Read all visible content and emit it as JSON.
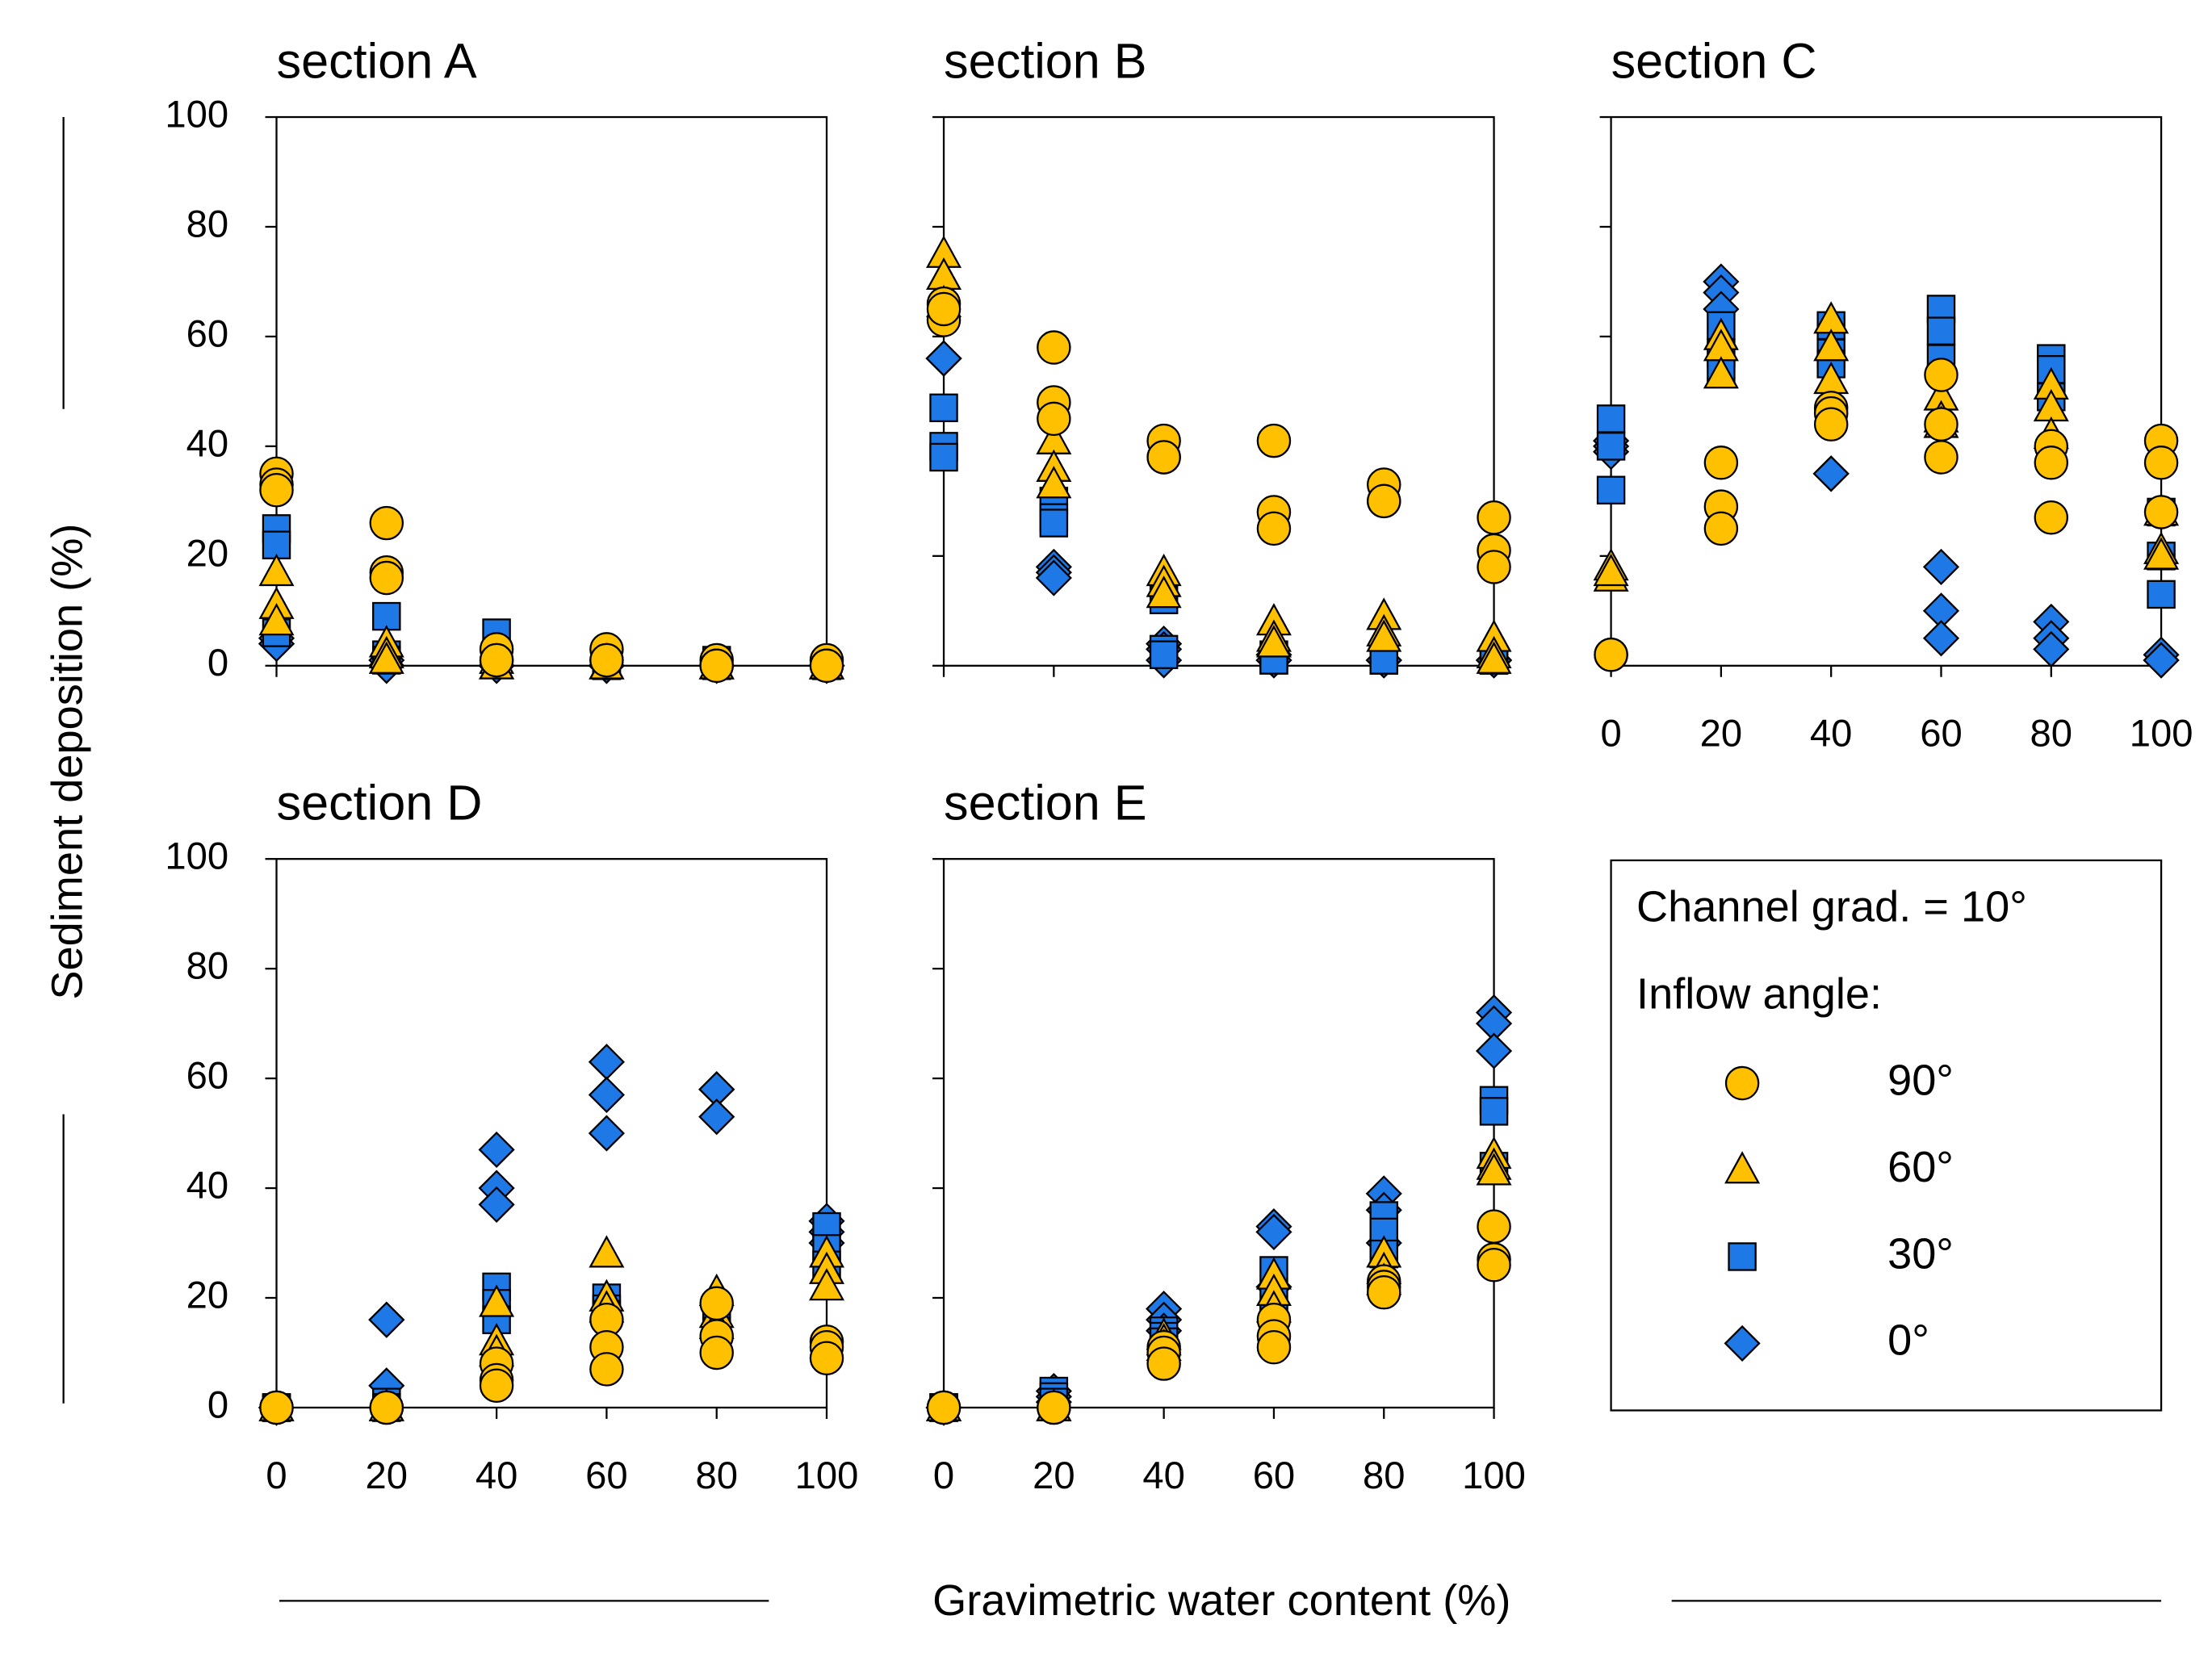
{
  "figure": {
    "ylabel": "Sediment deposition (%)",
    "xlabel": "Gravimetric water content (%)",
    "legend_title": "Channel grad. = 10°",
    "legend_subtitle": "Inflow angle:"
  },
  "chart_data": [
    {
      "type": "scatter",
      "title": "section A",
      "xtick_labels": false,
      "ytick_labels": true,
      "x": [
        0,
        0,
        0,
        20,
        20,
        20,
        40,
        40,
        40,
        60,
        60,
        60,
        80,
        80,
        80,
        100,
        100,
        100
      ],
      "xlim": [
        0,
        100
      ],
      "ylim": [
        0,
        100
      ],
      "xticks": [
        0,
        20,
        40,
        60,
        80,
        100
      ],
      "yticks": [
        0,
        20,
        40,
        60,
        80,
        100
      ],
      "series": [
        {
          "name": "90°",
          "color": "#FFC000",
          "marker": "circle",
          "values": [
            35,
            33,
            32,
            26,
            17,
            16,
            3,
            1,
            1,
            3,
            1,
            1,
            1,
            0,
            0,
            1,
            0,
            0
          ]
        },
        {
          "name": "60°",
          "color": "#FFC000",
          "marker": "triangle",
          "values": [
            17,
            11,
            8,
            4,
            2,
            1,
            1,
            0,
            0,
            0,
            0,
            0,
            0,
            0,
            0,
            0,
            0,
            0
          ]
        },
        {
          "name": "30°",
          "color": "#1E78E6",
          "marker": "square",
          "values": [
            25,
            22,
            6,
            9,
            2,
            1,
            6,
            2,
            1,
            1,
            0,
            0,
            1,
            0,
            0,
            0,
            0,
            0
          ]
        },
        {
          "name": "0°",
          "color": "#1E78E6",
          "marker": "diamond",
          "values": [
            5,
            4,
            4,
            1,
            0,
            0,
            0,
            0,
            0,
            0,
            0,
            0,
            0,
            0,
            0,
            0,
            0,
            0
          ]
        }
      ]
    },
    {
      "type": "scatter",
      "title": "section B",
      "xtick_labels": false,
      "ytick_labels": false,
      "x": [
        0,
        0,
        0,
        20,
        20,
        20,
        40,
        40,
        40,
        60,
        60,
        60,
        80,
        80,
        80,
        100,
        100,
        100
      ],
      "xlim": [
        0,
        100
      ],
      "ylim": [
        0,
        100
      ],
      "xticks": [
        0,
        20,
        40,
        60,
        80,
        100
      ],
      "yticks": [
        0,
        20,
        40,
        60,
        80,
        100
      ],
      "series": [
        {
          "name": "90°",
          "color": "#FFC000",
          "marker": "circle",
          "values": [
            66,
            63,
            65,
            58,
            48,
            45,
            41,
            38,
            38,
            41,
            28,
            25,
            33,
            30,
            30,
            27,
            21,
            18
          ]
        },
        {
          "name": "60°",
          "color": "#FFC000",
          "marker": "triangle",
          "values": [
            75,
            71,
            66,
            41,
            36,
            33,
            17,
            15,
            13,
            8,
            5,
            4,
            9,
            6,
            5,
            5,
            2,
            1
          ]
        },
        {
          "name": "30°",
          "color": "#1E78E6",
          "marker": "square",
          "values": [
            47,
            40,
            38,
            30,
            27,
            26,
            12,
            3,
            2,
            2,
            1,
            1,
            1,
            1,
            1,
            1,
            1,
            1
          ]
        },
        {
          "name": "0°",
          "color": "#1E78E6",
          "marker": "diamond",
          "values": [
            56,
            56,
            56,
            18,
            17,
            16,
            4,
            3,
            1,
            2,
            1,
            1,
            1,
            1,
            1,
            1,
            1,
            1
          ]
        }
      ]
    },
    {
      "type": "scatter",
      "title": "section C",
      "xtick_labels": true,
      "ytick_labels": false,
      "x": [
        0,
        0,
        0,
        20,
        20,
        20,
        40,
        40,
        40,
        60,
        60,
        60,
        80,
        80,
        80,
        100,
        100,
        100
      ],
      "xlim": [
        0,
        100
      ],
      "ylim": [
        0,
        100
      ],
      "xticks": [
        0,
        20,
        40,
        60,
        80,
        100
      ],
      "yticks": [
        0,
        20,
        40,
        60,
        80,
        100
      ],
      "series": [
        {
          "name": "90°",
          "color": "#FFC000",
          "marker": "circle",
          "values": [
            2,
            2,
            2,
            37,
            29,
            25,
            47,
            46,
            44,
            53,
            44,
            38,
            40,
            37,
            27,
            41,
            37,
            28
          ]
        },
        {
          "name": "60°",
          "color": "#FFC000",
          "marker": "triangle",
          "values": [
            18,
            16,
            17,
            60,
            58,
            53,
            63,
            58,
            52,
            49,
            45,
            44,
            51,
            47,
            42,
            28,
            21,
            20
          ]
        },
        {
          "name": "30°",
          "color": "#1E78E6",
          "marker": "square",
          "values": [
            45,
            40,
            32,
            62,
            57,
            54,
            62,
            57,
            55,
            65,
            61,
            56,
            56,
            54,
            49,
            28,
            20,
            13
          ]
        },
        {
          "name": "0°",
          "color": "#1E78E6",
          "marker": "diamond",
          "values": [
            41,
            40,
            39,
            70,
            68,
            65,
            35,
            35,
            35,
            18,
            10,
            5,
            8,
            5,
            3,
            2,
            1,
            1
          ]
        }
      ]
    },
    {
      "type": "scatter",
      "title": "section D",
      "xtick_labels": true,
      "ytick_labels": true,
      "x": [
        0,
        0,
        0,
        20,
        20,
        20,
        40,
        40,
        40,
        60,
        60,
        60,
        80,
        80,
        80,
        100,
        100,
        100
      ],
      "xlim": [
        0,
        100
      ],
      "ylim": [
        0,
        100
      ],
      "xticks": [
        0,
        20,
        40,
        60,
        80,
        100
      ],
      "yticks": [
        0,
        20,
        40,
        60,
        80,
        100
      ],
      "series": [
        {
          "name": "90°",
          "color": "#FFC000",
          "marker": "circle",
          "values": [
            0,
            0,
            0,
            0,
            0,
            0,
            8,
            5,
            4,
            16,
            11,
            7,
            19,
            13,
            10,
            12,
            11,
            9
          ]
        },
        {
          "name": "60°",
          "color": "#FFC000",
          "marker": "triangle",
          "values": [
            0,
            0,
            0,
            0,
            0,
            0,
            19,
            12,
            10,
            28,
            20,
            18,
            21,
            17,
            15,
            28,
            25,
            22
          ]
        },
        {
          "name": "30°",
          "color": "#1E78E6",
          "marker": "square",
          "values": [
            0,
            0,
            0,
            1,
            0,
            0,
            22,
            19,
            16,
            20,
            18,
            17,
            16,
            15,
            14,
            33,
            29,
            26
          ]
        },
        {
          "name": "0°",
          "color": "#1E78E6",
          "marker": "diamond",
          "values": [
            0,
            0,
            0,
            16,
            16,
            4,
            47,
            40,
            37,
            63,
            57,
            50,
            58,
            58,
            53,
            34,
            32,
            30
          ]
        }
      ]
    },
    {
      "type": "scatter",
      "title": "section E",
      "xtick_labels": true,
      "ytick_labels": false,
      "x": [
        0,
        0,
        0,
        20,
        20,
        20,
        40,
        40,
        40,
        60,
        60,
        60,
        80,
        80,
        80,
        100,
        100,
        100
      ],
      "xlim": [
        0,
        100
      ],
      "ylim": [
        0,
        100
      ],
      "xticks": [
        0,
        20,
        40,
        60,
        80,
        100
      ],
      "yticks": [
        0,
        20,
        40,
        60,
        80,
        100
      ],
      "series": [
        {
          "name": "90°",
          "color": "#FFC000",
          "marker": "circle",
          "values": [
            0,
            0,
            0,
            0,
            0,
            0,
            11,
            10,
            8,
            16,
            13,
            11,
            23,
            22,
            21,
            33,
            27,
            26
          ]
        },
        {
          "name": "60°",
          "color": "#FFC000",
          "marker": "triangle",
          "values": [
            0,
            0,
            0,
            0,
            0,
            0,
            13,
            12,
            11,
            24,
            21,
            18,
            28,
            25,
            23,
            46,
            44,
            43
          ]
        },
        {
          "name": "30°",
          "color": "#1E78E6",
          "marker": "square",
          "values": [
            0,
            0,
            0,
            3,
            2,
            1,
            14,
            13,
            12,
            25,
            20,
            17,
            35,
            32,
            28,
            56,
            54,
            44
          ]
        },
        {
          "name": "0°",
          "color": "#1E78E6",
          "marker": "diamond",
          "values": [
            0,
            0,
            0,
            3,
            2,
            1,
            18,
            16,
            14,
            33,
            32,
            22,
            39,
            36,
            30,
            72,
            70,
            65
          ]
        }
      ]
    }
  ]
}
